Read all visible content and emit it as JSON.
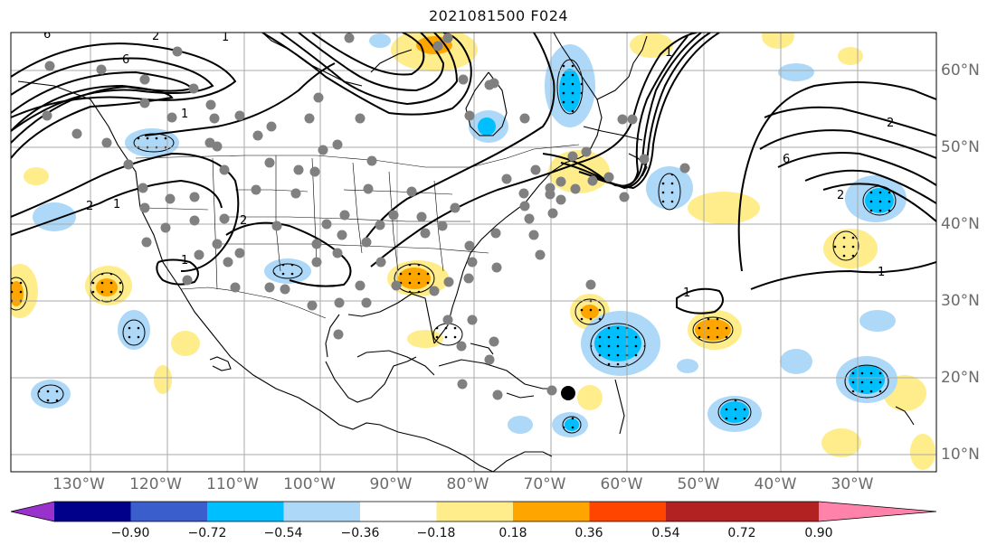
{
  "title": "2021081500 F024",
  "map": {
    "lon_labels": [
      "130°W",
      "120°W",
      "110°W",
      "100°W",
      "90°W",
      "80°W",
      "70°W",
      "60°W",
      "50°W",
      "40°W",
      "30°W"
    ],
    "lat_labels": [
      "60°N",
      "50°N",
      "40°N",
      "30°N",
      "20°N",
      "10°N"
    ],
    "contour_labels": [
      "6",
      "2",
      "1",
      "6",
      "2",
      "1",
      "2",
      "6",
      "2",
      "1",
      "1",
      "2",
      "1",
      "1",
      "1"
    ],
    "station_color": "#808080",
    "marker_color": "#000000"
  },
  "colorbar": {
    "ticks": [
      "−0.90",
      "−0.72",
      "−0.54",
      "−0.36",
      "−0.18",
      "0.18",
      "0.36",
      "0.54",
      "0.72",
      "0.90"
    ],
    "colors": [
      "#9932CC",
      "#00008B",
      "#3A5FCD",
      "#00BFFF",
      "#ADD8F7",
      "#FFFFFF",
      "#FFEC8B",
      "#FFA500",
      "#FF4500",
      "#B22222",
      "#FF82AB"
    ]
  }
}
